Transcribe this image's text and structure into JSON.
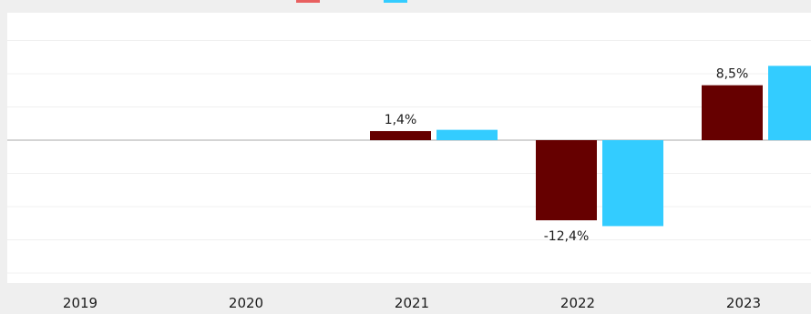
{
  "chart_data": {
    "type": "bar",
    "categories": [
      "2019",
      "2020",
      "2021",
      "2022",
      "2023"
    ],
    "series": [
      {
        "color": "#660000",
        "values": [
          null,
          null,
          1.4,
          -12.4,
          8.5
        ],
        "data_labels": [
          "",
          "",
          "1,4%",
          "-12,4%",
          "8,5%"
        ]
      },
      {
        "color": "#33ccff",
        "values": [
          null,
          null,
          1.6,
          -13.3,
          11.5
        ],
        "data_labels": [
          "",
          "",
          "",
          "",
          ""
        ]
      }
    ],
    "ylim": [
      -20,
      20
    ],
    "grid": true,
    "legend_position": "top"
  }
}
